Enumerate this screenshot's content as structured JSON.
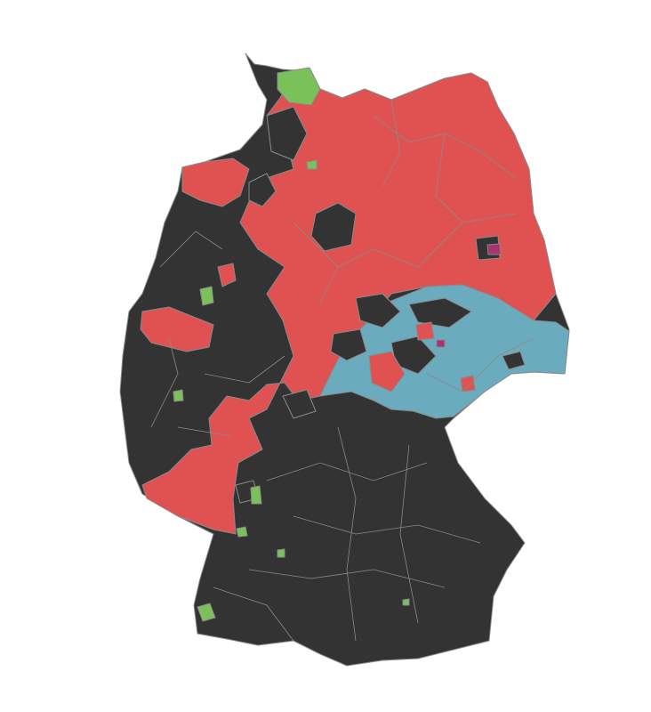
{
  "map": {
    "colors": {
      "background": "#ffffff",
      "base": "#333333",
      "region_a": "#e05252",
      "region_b": "#6aabbd",
      "region_c": "#7ac15a",
      "region_d": "#a8336e",
      "border": "#8a8a8a"
    }
  }
}
